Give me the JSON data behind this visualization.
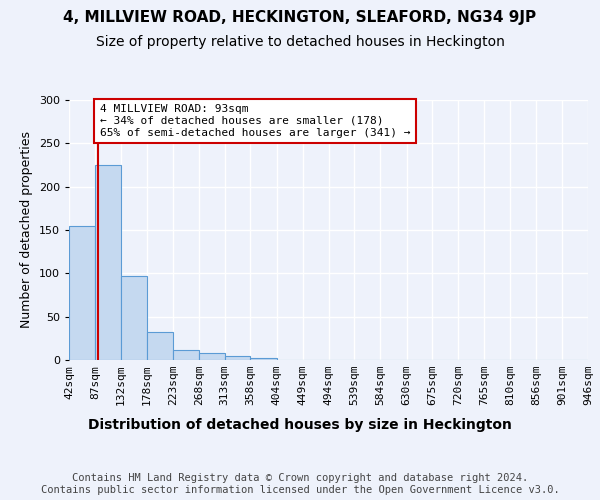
{
  "title1": "4, MILLVIEW ROAD, HECKINGTON, SLEAFORD, NG34 9JP",
  "title2": "Size of property relative to detached houses in Heckington",
  "xlabel": "Distribution of detached houses by size in Heckington",
  "ylabel": "Number of detached properties",
  "bin_edges": [
    42,
    87,
    132,
    178,
    223,
    268,
    313,
    358,
    404,
    449,
    494,
    539,
    584,
    630,
    675,
    720,
    765,
    810,
    856,
    901,
    946
  ],
  "bar_heights": [
    155,
    225,
    97,
    32,
    12,
    8,
    5,
    2,
    0,
    0,
    0,
    0,
    0,
    0,
    0,
    0,
    0,
    0,
    0,
    0
  ],
  "bar_color": "#c5d9f0",
  "bar_edge_color": "#5b9bd5",
  "property_size": 93,
  "property_line_color": "#cc0000",
  "annotation_text": "4 MILLVIEW ROAD: 93sqm\n← 34% of detached houses are smaller (178)\n65% of semi-detached houses are larger (341) →",
  "annotation_box_color": "#ffffff",
  "annotation_box_edge": "#cc0000",
  "ylim": [
    0,
    300
  ],
  "yticks": [
    0,
    50,
    100,
    150,
    200,
    250,
    300
  ],
  "footer_text": "Contains HM Land Registry data © Crown copyright and database right 2024.\nContains public sector information licensed under the Open Government Licence v3.0.",
  "bg_color": "#eef2fb",
  "plot_bg_color": "#eef2fb",
  "title1_fontsize": 11,
  "title2_fontsize": 10,
  "xlabel_fontsize": 10,
  "ylabel_fontsize": 9,
  "tick_fontsize": 8,
  "footer_fontsize": 7.5
}
